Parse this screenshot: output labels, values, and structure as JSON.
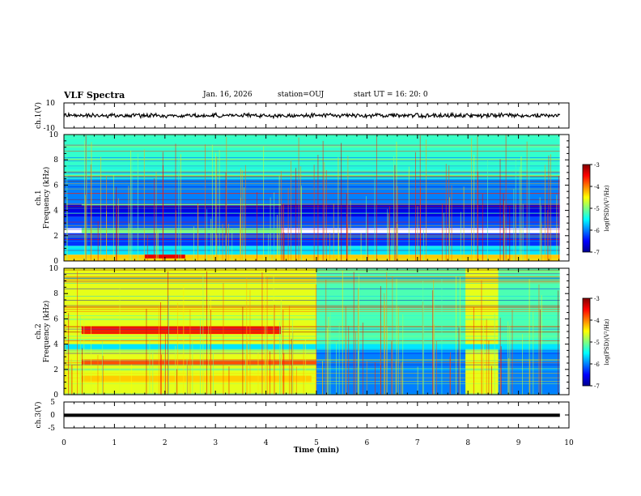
{
  "header": {
    "title": "VLF Spectra",
    "date": "Jan. 16, 2026",
    "station": "station=OUJ",
    "start": "start UT =  16: 20: 0"
  },
  "chart_data": [
    {
      "type": "line",
      "name": "ch1-waveform",
      "ylabel": "ch.1(V)",
      "ylim": [
        -10,
        10
      ],
      "yticks": [
        "10",
        "-10"
      ],
      "xlim": [
        0,
        10
      ],
      "summary_amplitude_v": [
        -2.0,
        2.0
      ]
    },
    {
      "type": "heatmap",
      "name": "ch1-spectrogram",
      "ylabel_line1": "ch.1",
      "ylabel_line2": "Frequency (kHz)",
      "ylim": [
        0,
        10
      ],
      "yticks": [
        "0",
        "2",
        "4",
        "6",
        "8",
        "10"
      ],
      "xlim": [
        0,
        10
      ],
      "data_end_min": 9.82,
      "colorbar": {
        "label": "log(PSD)(V²/Hz)",
        "range": [
          -7,
          -3
        ],
        "ticks": [
          "-3",
          "-4",
          "-5",
          "-6",
          "-7"
        ]
      },
      "bands": [
        {
          "f0": 0.0,
          "f1": 0.5,
          "t0": 0,
          "t1": 9.82,
          "level": -4.3
        },
        {
          "f0": 0.5,
          "f1": 1.2,
          "t0": 0,
          "t1": 9.82,
          "level": -5.6
        },
        {
          "f0": 1.2,
          "f1": 2.2,
          "t0": 0,
          "t1": 9.82,
          "level": -6.3
        },
        {
          "f0": 2.2,
          "f1": 2.6,
          "t0": 0.35,
          "t1": 4.3,
          "level": -5.0
        },
        {
          "f0": 2.6,
          "f1": 3.5,
          "t0": 0,
          "t1": 9.82,
          "level": -6.2
        },
        {
          "f0": 3.5,
          "f1": 4.5,
          "t0": 0,
          "t1": 9.82,
          "level": -6.6
        },
        {
          "f0": 4.4,
          "f1": 4.8,
          "t0": 0.35,
          "t1": 4.3,
          "level": -5.2
        },
        {
          "f0": 4.5,
          "f1": 6.5,
          "t0": 0,
          "t1": 9.82,
          "level": -6.0
        },
        {
          "f0": 6.5,
          "f1": 10.0,
          "t0": 0,
          "t1": 9.82,
          "level": -5.3
        },
        {
          "f0": 0.2,
          "f1": 0.5,
          "t0": 1.6,
          "t1": 2.4,
          "level": -3.4
        }
      ]
    },
    {
      "type": "heatmap",
      "name": "ch2-spectrogram",
      "ylabel_line1": "ch.2",
      "ylabel_line2": "Frequency (kHz)",
      "ylim": [
        0,
        10
      ],
      "yticks": [
        "0",
        "2",
        "4",
        "6",
        "8",
        "10"
      ],
      "xlim": [
        0,
        10
      ],
      "data_end_min": 9.82,
      "colorbar": {
        "label": "log(PSD)(V²/Hz)",
        "range": [
          -7,
          -3
        ],
        "ticks": [
          "-3",
          "-4",
          "-5",
          "-6",
          "-7"
        ]
      },
      "bands": [
        {
          "f0": 0.0,
          "f1": 10.0,
          "t0": 0,
          "t1": 9.82,
          "level": -4.6
        },
        {
          "f0": 0.0,
          "f1": 4.0,
          "t0": 5.0,
          "t1": 7.95,
          "level": -6.0
        },
        {
          "f0": 0.0,
          "f1": 4.0,
          "t0": 8.6,
          "t1": 9.82,
          "level": -6.0
        },
        {
          "f0": 4.0,
          "f1": 10.0,
          "t0": 5.0,
          "t1": 7.95,
          "level": -5.2
        },
        {
          "f0": 4.0,
          "f1": 10.0,
          "t0": 8.6,
          "t1": 9.82,
          "level": -5.2
        },
        {
          "f0": 4.8,
          "f1": 5.4,
          "t0": 0.35,
          "t1": 4.3,
          "level": -3.6
        },
        {
          "f0": 2.4,
          "f1": 2.8,
          "t0": 0.35,
          "t1": 5.0,
          "level": -3.8
        },
        {
          "f0": 3.6,
          "f1": 4.0,
          "t0": 0,
          "t1": 9.82,
          "level": -5.6
        },
        {
          "f0": 1.0,
          "f1": 1.5,
          "t0": 0.35,
          "t1": 4.9,
          "level": -4.3
        }
      ]
    },
    {
      "type": "line",
      "name": "ch3-waveform",
      "ylabel": "ch.3(V)",
      "ylim": [
        -5,
        5
      ],
      "yticks": [
        "5",
        "0",
        "-5"
      ],
      "xlim": [
        0,
        10
      ],
      "xlabel": "Time (min)",
      "xticks": [
        "0",
        "1",
        "2",
        "3",
        "4",
        "5",
        "6",
        "7",
        "8",
        "9",
        "10"
      ],
      "constant_value_v": -0.1
    }
  ]
}
